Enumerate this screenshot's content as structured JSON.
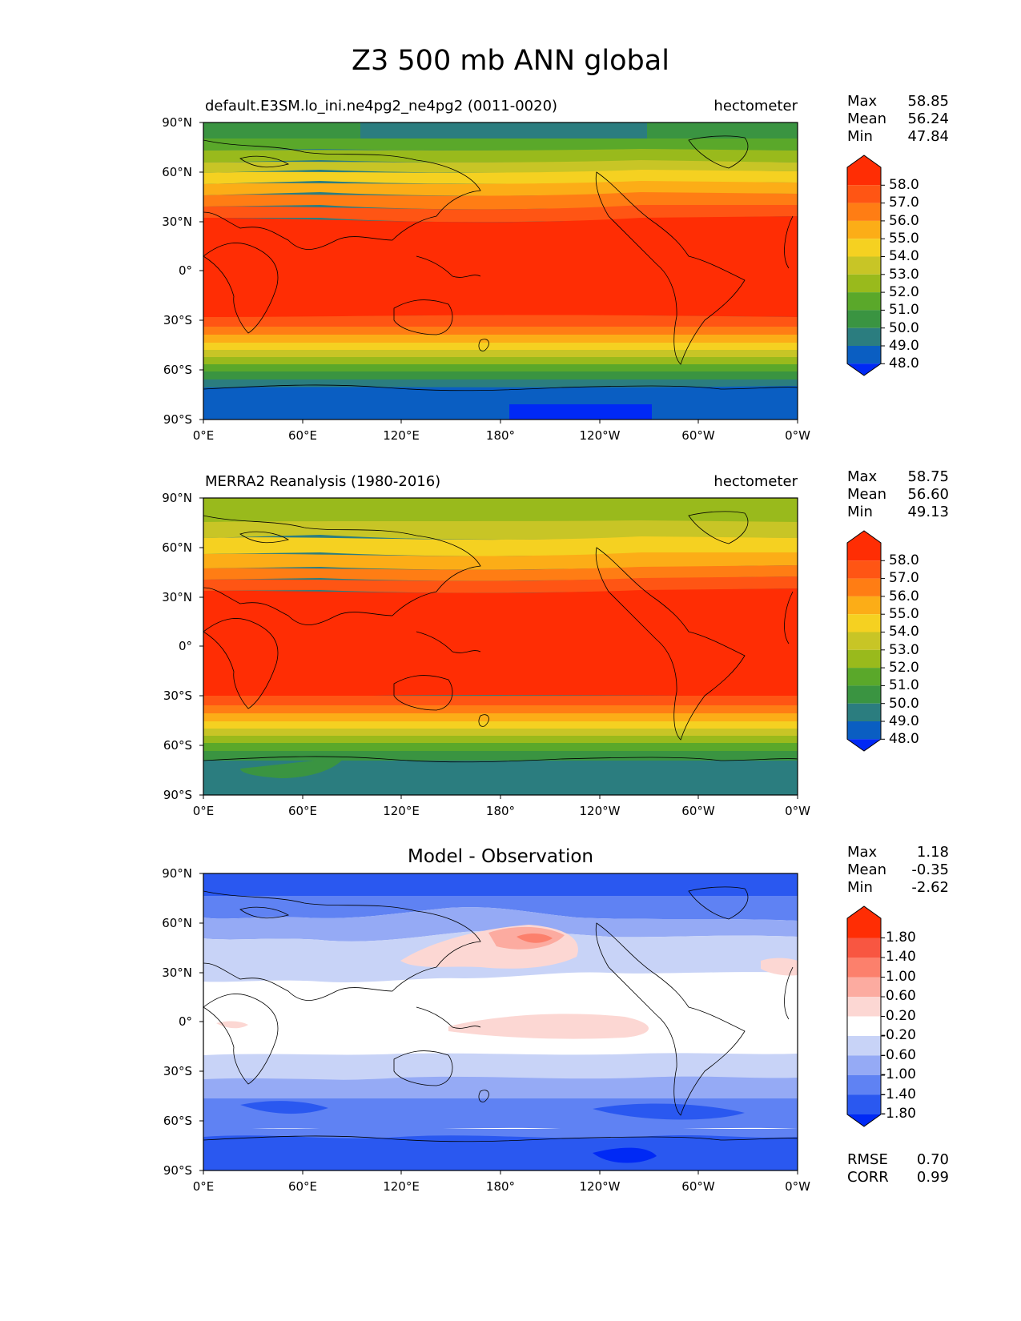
{
  "title": "Z3 500 mb ANN global",
  "lon_ticks": [
    "0°E",
    "60°E",
    "120°E",
    "180°",
    "120°W",
    "60°W",
    "0°W"
  ],
  "lat_ticks": [
    "90°N",
    "60°N",
    "30°N",
    "0°",
    "30°S",
    "60°S",
    "90°S"
  ],
  "colors": {
    "z3_levels": [
      "#0029f5",
      "#0a5ec2",
      "#2b7d7f",
      "#3a9441",
      "#5aa82a",
      "#99ba1c",
      "#c8c526",
      "#f5d121",
      "#fcad17",
      "#ff7d14",
      "#ff5514",
      "#ff2d04"
    ],
    "diff_levels": [
      "#0029f5",
      "#2a58f0",
      "#5f82f3",
      "#95aaf5",
      "#c8d3f7",
      "#ffffff",
      "#fcd7d3",
      "#fcaba0",
      "#fc806c",
      "#f85641",
      "#ff2d04"
    ],
    "coastline": "#000000"
  },
  "panels": [
    {
      "name": "test",
      "left_title": "default.E3SM.lo_ini.ne4pg2_ne4pg2 (0011-0020)",
      "right_title": "hectometer",
      "stats": [
        {
          "label": "Max",
          "value": "58.85"
        },
        {
          "label": "Mean",
          "value": "56.24"
        },
        {
          "label": "Min",
          "value": "47.84"
        }
      ],
      "colorbar_labels": [
        "58.0",
        "57.0",
        "56.0",
        "55.0",
        "54.0",
        "53.0",
        "52.0",
        "51.0",
        "50.0",
        "49.0",
        "48.0"
      ]
    },
    {
      "name": "reference",
      "left_title": "MERRA2 Reanalysis (1980-2016)",
      "right_title": "hectometer",
      "stats": [
        {
          "label": "Max",
          "value": "58.75"
        },
        {
          "label": "Mean",
          "value": "56.60"
        },
        {
          "label": "Min",
          "value": "49.13"
        }
      ],
      "colorbar_labels": [
        "58.0",
        "57.0",
        "56.0",
        "55.0",
        "54.0",
        "53.0",
        "52.0",
        "51.0",
        "50.0",
        "49.0",
        "48.0"
      ]
    },
    {
      "name": "difference",
      "center_title": "Model - Observation",
      "stats": [
        {
          "label": "Max",
          "value": "1.18"
        },
        {
          "label": "Mean",
          "value": "-0.35"
        },
        {
          "label": "Min",
          "value": "-2.62"
        }
      ],
      "colorbar_labels": [
        "1.80",
        "1.40",
        "1.00",
        "0.60",
        "0.20",
        "-0.20",
        "-0.60",
        "-1.00",
        "-1.40",
        "-1.80"
      ],
      "metrics": [
        {
          "label": "RMSE",
          "value": "0.70"
        },
        {
          "label": "CORR",
          "value": "0.99"
        }
      ]
    }
  ]
}
